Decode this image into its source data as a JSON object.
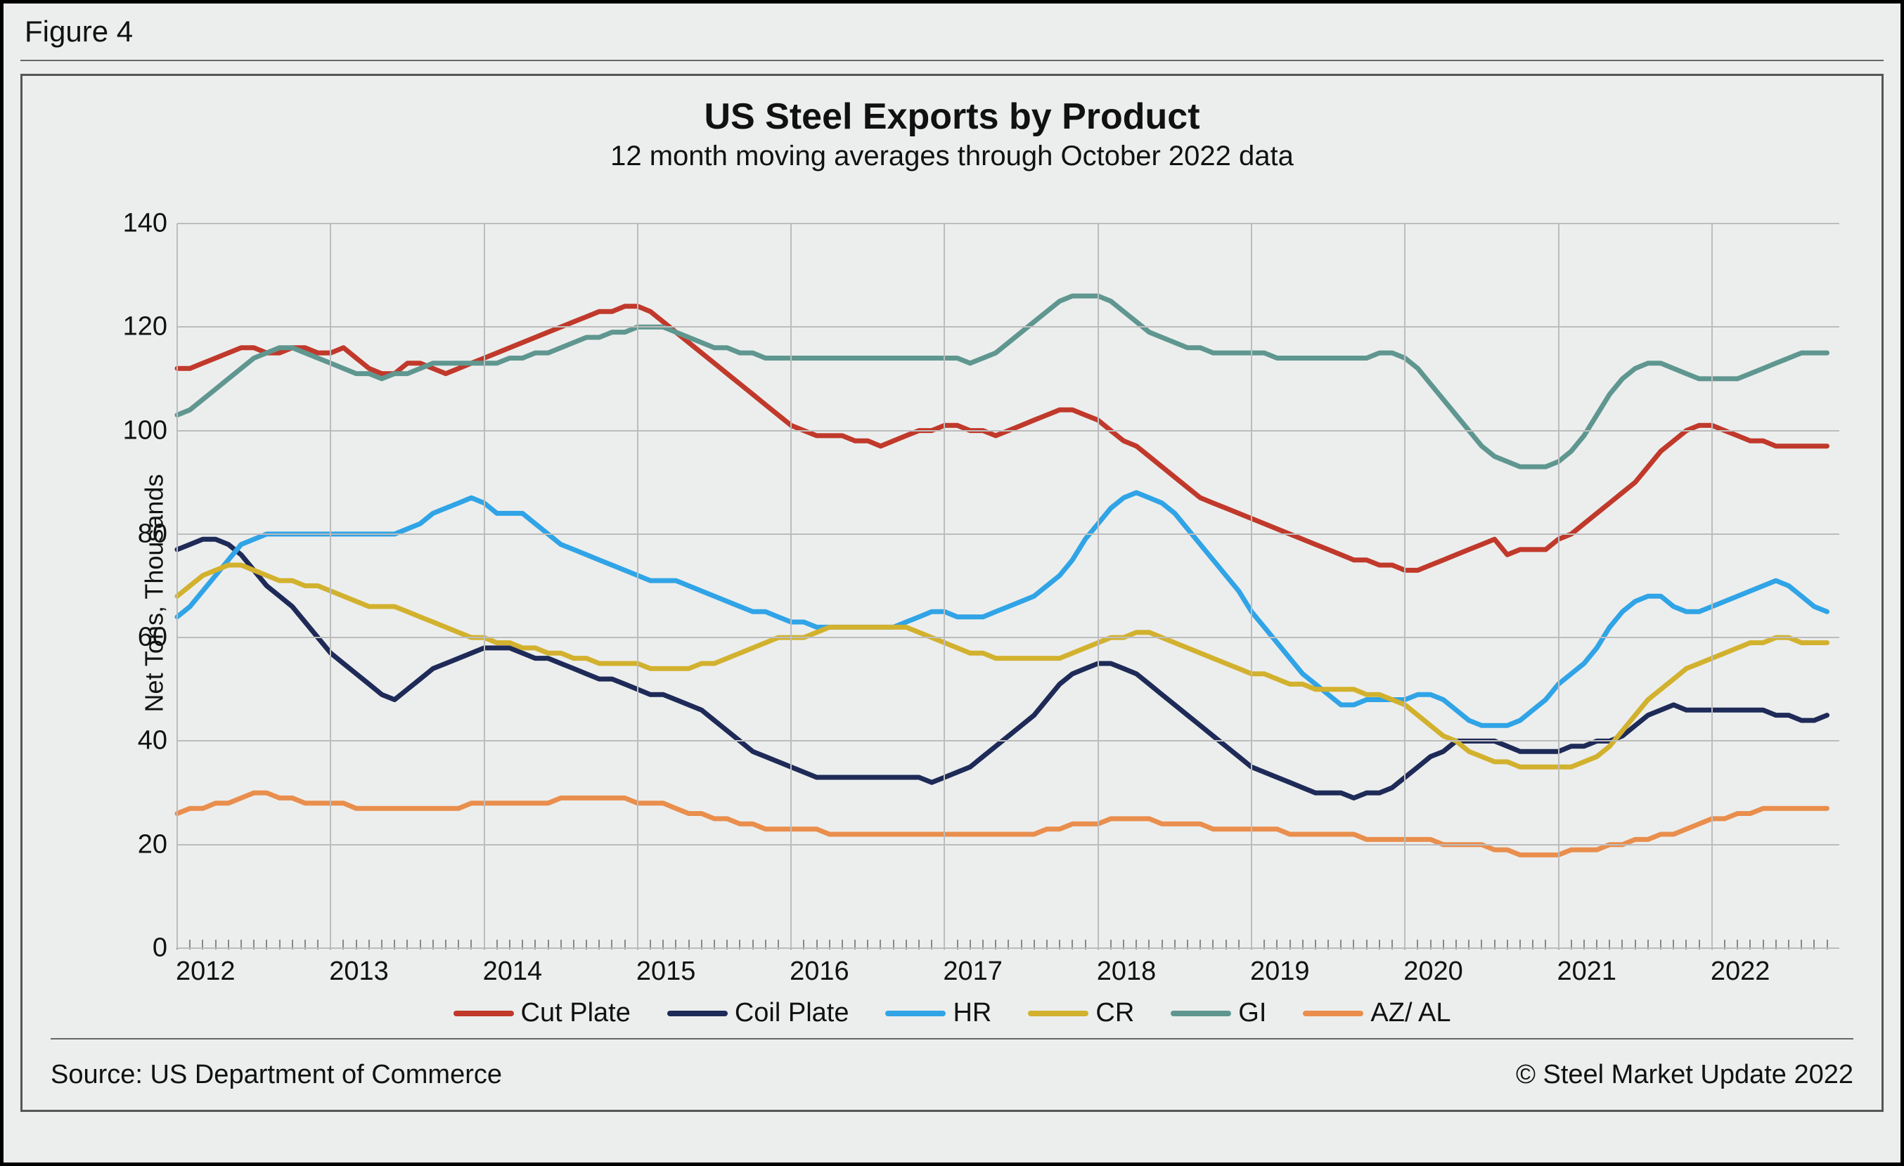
{
  "figure_label": "Figure 4",
  "chart": {
    "type": "line",
    "title": "US Steel Exports by Product",
    "subtitle": "12 month moving averages through October 2022 data",
    "ylabel": "Net Tons, Thousands",
    "title_fontsize": 52,
    "subtitle_fontsize": 40,
    "label_fontsize": 36,
    "tick_fontsize": 38,
    "background_color": "#eceeed",
    "grid_color": "#bcbcbc",
    "grid_major": true,
    "minor_ticks_per_year": 12,
    "line_width": 7,
    "ylim": [
      0,
      140
    ],
    "ytick_step": 20,
    "xlim": [
      2012,
      2022.83
    ],
    "x_years": [
      2012,
      2013,
      2014,
      2015,
      2016,
      2017,
      2018,
      2019,
      2020,
      2021,
      2022
    ],
    "x_year_labels": [
      "2012",
      "2013",
      "2014",
      "2015",
      "2016",
      "2017",
      "2018",
      "2019",
      "2020",
      "2021",
      "2022"
    ],
    "x_dates": [
      "2012-01",
      "2012-02",
      "2012-03",
      "2012-04",
      "2012-05",
      "2012-06",
      "2012-07",
      "2012-08",
      "2012-09",
      "2012-10",
      "2012-11",
      "2012-12",
      "2013-01",
      "2013-02",
      "2013-03",
      "2013-04",
      "2013-05",
      "2013-06",
      "2013-07",
      "2013-08",
      "2013-09",
      "2013-10",
      "2013-11",
      "2013-12",
      "2014-01",
      "2014-02",
      "2014-03",
      "2014-04",
      "2014-05",
      "2014-06",
      "2014-07",
      "2014-08",
      "2014-09",
      "2014-10",
      "2014-11",
      "2014-12",
      "2015-01",
      "2015-02",
      "2015-03",
      "2015-04",
      "2015-05",
      "2015-06",
      "2015-07",
      "2015-08",
      "2015-09",
      "2015-10",
      "2015-11",
      "2015-12",
      "2016-01",
      "2016-02",
      "2016-03",
      "2016-04",
      "2016-05",
      "2016-06",
      "2016-07",
      "2016-08",
      "2016-09",
      "2016-10",
      "2016-11",
      "2016-12",
      "2017-01",
      "2017-02",
      "2017-03",
      "2017-04",
      "2017-05",
      "2017-06",
      "2017-07",
      "2017-08",
      "2017-09",
      "2017-10",
      "2017-11",
      "2017-12",
      "2018-01",
      "2018-02",
      "2018-03",
      "2018-04",
      "2018-05",
      "2018-06",
      "2018-07",
      "2018-08",
      "2018-09",
      "2018-10",
      "2018-11",
      "2018-12",
      "2019-01",
      "2019-02",
      "2019-03",
      "2019-04",
      "2019-05",
      "2019-06",
      "2019-07",
      "2019-08",
      "2019-09",
      "2019-10",
      "2019-11",
      "2019-12",
      "2020-01",
      "2020-02",
      "2020-03",
      "2020-04",
      "2020-05",
      "2020-06",
      "2020-07",
      "2020-08",
      "2020-09",
      "2020-10",
      "2020-11",
      "2020-12",
      "2021-01",
      "2021-02",
      "2021-03",
      "2021-04",
      "2021-05",
      "2021-06",
      "2021-07",
      "2021-08",
      "2021-09",
      "2021-10",
      "2021-11",
      "2021-12",
      "2022-01",
      "2022-02",
      "2022-03",
      "2022-04",
      "2022-05",
      "2022-06",
      "2022-07",
      "2022-08",
      "2022-09",
      "2022-10"
    ],
    "series": [
      {
        "label": "Cut Plate",
        "color": "#c0392b",
        "values": [
          112,
          112,
          113,
          114,
          115,
          116,
          116,
          115,
          115,
          116,
          116,
          115,
          115,
          116,
          114,
          112,
          111,
          111,
          113,
          113,
          112,
          111,
          112,
          113,
          114,
          115,
          116,
          117,
          118,
          119,
          120,
          121,
          122,
          123,
          123,
          124,
          124,
          123,
          121,
          119,
          117,
          115,
          113,
          111,
          109,
          107,
          105,
          103,
          101,
          100,
          99,
          99,
          99,
          98,
          98,
          97,
          98,
          99,
          100,
          100,
          101,
          101,
          100,
          100,
          99,
          100,
          101,
          102,
          103,
          104,
          104,
          103,
          102,
          100,
          98,
          97,
          95,
          93,
          91,
          89,
          87,
          86,
          85,
          84,
          83,
          82,
          81,
          80,
          79,
          78,
          77,
          76,
          75,
          75,
          74,
          74,
          73,
          73,
          74,
          75,
          76,
          77,
          78,
          79,
          76,
          77,
          77,
          77,
          79,
          80,
          82,
          84,
          86,
          88,
          90,
          93,
          96,
          98,
          100,
          101,
          101,
          100,
          99,
          98,
          98,
          97,
          97,
          97,
          97,
          97
        ]
      },
      {
        "label": "Coil Plate",
        "color": "#1e2a57",
        "values": [
          77,
          78,
          79,
          79,
          78,
          76,
          73,
          70,
          68,
          66,
          63,
          60,
          57,
          55,
          53,
          51,
          49,
          48,
          50,
          52,
          54,
          55,
          56,
          57,
          58,
          58,
          58,
          57,
          56,
          56,
          55,
          54,
          53,
          52,
          52,
          51,
          50,
          49,
          49,
          48,
          47,
          46,
          44,
          42,
          40,
          38,
          37,
          36,
          35,
          34,
          33,
          33,
          33,
          33,
          33,
          33,
          33,
          33,
          33,
          32,
          33,
          34,
          35,
          37,
          39,
          41,
          43,
          45,
          48,
          51,
          53,
          54,
          55,
          55,
          54,
          53,
          51,
          49,
          47,
          45,
          43,
          41,
          39,
          37,
          35,
          34,
          33,
          32,
          31,
          30,
          30,
          30,
          29,
          30,
          30,
          31,
          33,
          35,
          37,
          38,
          40,
          40,
          40,
          40,
          39,
          38,
          38,
          38,
          38,
          39,
          39,
          40,
          40,
          41,
          43,
          45,
          46,
          47,
          46,
          46,
          46,
          46,
          46,
          46,
          46,
          45,
          45,
          44,
          44,
          45
        ]
      },
      {
        "label": "HR",
        "color": "#30a4e6",
        "values": [
          64,
          66,
          69,
          72,
          75,
          78,
          79,
          80,
          80,
          80,
          80,
          80,
          80,
          80,
          80,
          80,
          80,
          80,
          81,
          82,
          84,
          85,
          86,
          87,
          86,
          84,
          84,
          84,
          82,
          80,
          78,
          77,
          76,
          75,
          74,
          73,
          72,
          71,
          71,
          71,
          70,
          69,
          68,
          67,
          66,
          65,
          65,
          64,
          63,
          63,
          62,
          62,
          62,
          62,
          62,
          62,
          62,
          63,
          64,
          65,
          65,
          64,
          64,
          64,
          65,
          66,
          67,
          68,
          70,
          72,
          75,
          79,
          82,
          85,
          87,
          88,
          87,
          86,
          84,
          81,
          78,
          75,
          72,
          69,
          65,
          62,
          59,
          56,
          53,
          51,
          49,
          47,
          47,
          48,
          48,
          48,
          48,
          49,
          49,
          48,
          46,
          44,
          43,
          43,
          43,
          44,
          46,
          48,
          51,
          53,
          55,
          58,
          62,
          65,
          67,
          68,
          68,
          66,
          65,
          65,
          66,
          67,
          68,
          69,
          70,
          71,
          70,
          68,
          66,
          65
        ]
      },
      {
        "label": "CR",
        "color": "#d2b12e",
        "values": [
          68,
          70,
          72,
          73,
          74,
          74,
          73,
          72,
          71,
          71,
          70,
          70,
          69,
          68,
          67,
          66,
          66,
          66,
          65,
          64,
          63,
          62,
          61,
          60,
          60,
          59,
          59,
          58,
          58,
          57,
          57,
          56,
          56,
          55,
          55,
          55,
          55,
          54,
          54,
          54,
          54,
          55,
          55,
          56,
          57,
          58,
          59,
          60,
          60,
          60,
          61,
          62,
          62,
          62,
          62,
          62,
          62,
          62,
          61,
          60,
          59,
          58,
          57,
          57,
          56,
          56,
          56,
          56,
          56,
          56,
          57,
          58,
          59,
          60,
          60,
          61,
          61,
          60,
          59,
          58,
          57,
          56,
          55,
          54,
          53,
          53,
          52,
          51,
          51,
          50,
          50,
          50,
          50,
          49,
          49,
          48,
          47,
          45,
          43,
          41,
          40,
          38,
          37,
          36,
          36,
          35,
          35,
          35,
          35,
          35,
          36,
          37,
          39,
          42,
          45,
          48,
          50,
          52,
          54,
          55,
          56,
          57,
          58,
          59,
          59,
          60,
          60,
          59,
          59,
          59
        ]
      },
      {
        "label": "GI",
        "color": "#5f9790",
        "values": [
          103,
          104,
          106,
          108,
          110,
          112,
          114,
          115,
          116,
          116,
          115,
          114,
          113,
          112,
          111,
          111,
          110,
          111,
          111,
          112,
          113,
          113,
          113,
          113,
          113,
          113,
          114,
          114,
          115,
          115,
          116,
          117,
          118,
          118,
          119,
          119,
          120,
          120,
          120,
          119,
          118,
          117,
          116,
          116,
          115,
          115,
          114,
          114,
          114,
          114,
          114,
          114,
          114,
          114,
          114,
          114,
          114,
          114,
          114,
          114,
          114,
          114,
          113,
          114,
          115,
          117,
          119,
          121,
          123,
          125,
          126,
          126,
          126,
          125,
          123,
          121,
          119,
          118,
          117,
          116,
          116,
          115,
          115,
          115,
          115,
          115,
          114,
          114,
          114,
          114,
          114,
          114,
          114,
          114,
          115,
          115,
          114,
          112,
          109,
          106,
          103,
          100,
          97,
          95,
          94,
          93,
          93,
          93,
          94,
          96,
          99,
          103,
          107,
          110,
          112,
          113,
          113,
          112,
          111,
          110,
          110,
          110,
          110,
          111,
          112,
          113,
          114,
          115,
          115,
          115
        ]
      },
      {
        "label": "AZ/ AL",
        "color": "#e98e4d",
        "values": [
          26,
          27,
          27,
          28,
          28,
          29,
          30,
          30,
          29,
          29,
          28,
          28,
          28,
          28,
          27,
          27,
          27,
          27,
          27,
          27,
          27,
          27,
          27,
          28,
          28,
          28,
          28,
          28,
          28,
          28,
          29,
          29,
          29,
          29,
          29,
          29,
          28,
          28,
          28,
          27,
          26,
          26,
          25,
          25,
          24,
          24,
          23,
          23,
          23,
          23,
          23,
          22,
          22,
          22,
          22,
          22,
          22,
          22,
          22,
          22,
          22,
          22,
          22,
          22,
          22,
          22,
          22,
          22,
          23,
          23,
          24,
          24,
          24,
          25,
          25,
          25,
          25,
          24,
          24,
          24,
          24,
          23,
          23,
          23,
          23,
          23,
          23,
          22,
          22,
          22,
          22,
          22,
          22,
          21,
          21,
          21,
          21,
          21,
          21,
          20,
          20,
          20,
          20,
          19,
          19,
          18,
          18,
          18,
          18,
          19,
          19,
          19,
          20,
          20,
          21,
          21,
          22,
          22,
          23,
          24,
          25,
          25,
          26,
          26,
          27,
          27,
          27,
          27,
          27,
          27
        ]
      }
    ],
    "source_left": "Source: US Department of Commerce",
    "source_right": "© Steel Market Update 2022",
    "legend_position": "bottom"
  }
}
